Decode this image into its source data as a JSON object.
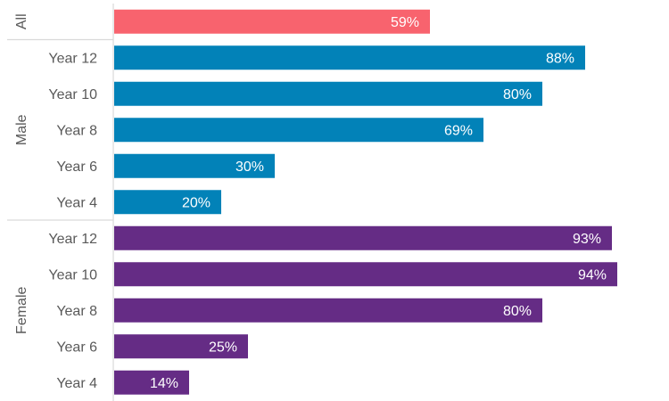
{
  "chart_data": {
    "type": "bar",
    "orientation": "horizontal",
    "xlim": [
      0,
      100
    ],
    "value_suffix": "%",
    "groups": [
      {
        "name": "All",
        "color": "#f8636e",
        "rows": [
          {
            "category": "",
            "value": 59,
            "label": "59%"
          }
        ]
      },
      {
        "name": "Male",
        "color": "#0282b8",
        "rows": [
          {
            "category": "Year 12",
            "value": 88,
            "label": "88%"
          },
          {
            "category": "Year 10",
            "value": 80,
            "label": "80%"
          },
          {
            "category": "Year 8",
            "value": 69,
            "label": "69%"
          },
          {
            "category": "Year 6",
            "value": 30,
            "label": "30%"
          },
          {
            "category": "Year 4",
            "value": 20,
            "label": "20%"
          }
        ]
      },
      {
        "name": "Female",
        "color": "#652c85",
        "rows": [
          {
            "category": "Year 12",
            "value": 93,
            "label": "93%"
          },
          {
            "category": "Year 10",
            "value": 94,
            "label": "94%"
          },
          {
            "category": "Year 8",
            "value": 80,
            "label": "80%"
          },
          {
            "category": "Year 6",
            "value": 25,
            "label": "25%"
          },
          {
            "category": "Year 4",
            "value": 14,
            "label": "14%"
          }
        ]
      }
    ]
  }
}
